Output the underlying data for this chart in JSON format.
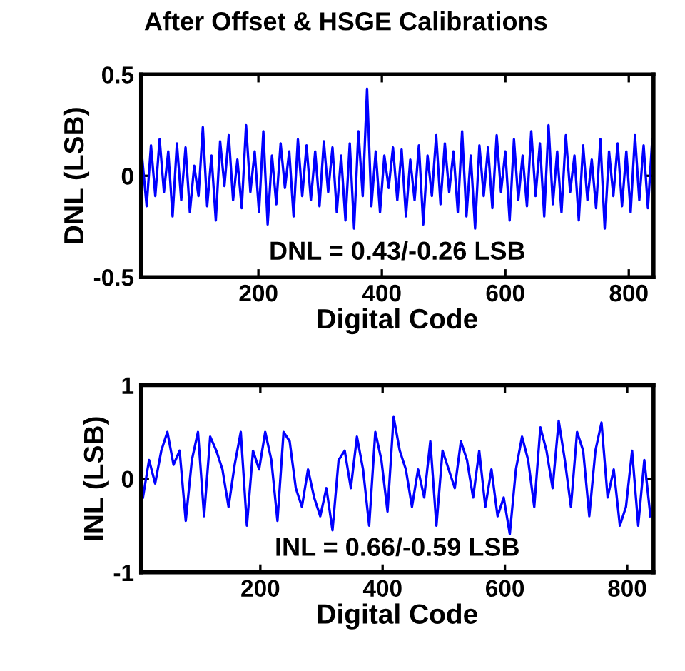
{
  "chart_data": [
    {
      "type": "line",
      "title": "After Offset & HSGE Calibrations",
      "xlabel": "Digital Code",
      "ylabel": "DNL (LSB)",
      "annotations": [
        "DNL = 0.43/-0.26 LSB"
      ],
      "xlim": [
        10,
        840
      ],
      "ylim": [
        -0.5,
        0.5
      ],
      "xticks": [
        200,
        400,
        600,
        800
      ],
      "yticks": [
        -0.5,
        0,
        0.5
      ],
      "grid": false,
      "marker": "none",
      "line_style": "solid",
      "series": [
        {
          "color": "#0000ff",
          "x": [
            12,
            19,
            26,
            33,
            40,
            47,
            54,
            61,
            68,
            75,
            82,
            89,
            96,
            103,
            110,
            117,
            124,
            131,
            138,
            145,
            152,
            159,
            166,
            173,
            180,
            187,
            194,
            201,
            208,
            215,
            222,
            229,
            236,
            243,
            250,
            257,
            264,
            271,
            278,
            285,
            292,
            299,
            306,
            313,
            320,
            327,
            334,
            341,
            348,
            355,
            362,
            369,
            376,
            383,
            390,
            397,
            404,
            411,
            418,
            425,
            432,
            439,
            446,
            453,
            460,
            467,
            474,
            481,
            488,
            495,
            502,
            509,
            516,
            523,
            530,
            537,
            544,
            551,
            558,
            565,
            572,
            579,
            586,
            593,
            600,
            607,
            614,
            621,
            628,
            635,
            642,
            649,
            656,
            663,
            670,
            677,
            684,
            691,
            698,
            705,
            712,
            719,
            726,
            733,
            740,
            747,
            754,
            761,
            768,
            775,
            782,
            789,
            796,
            803,
            810,
            817,
            824,
            831,
            838
          ],
          "values": [
            0.08,
            -0.15,
            0.15,
            -0.1,
            0.18,
            -0.08,
            0.12,
            -0.2,
            0.16,
            -0.12,
            0.14,
            -0.18,
            0.05,
            -0.1,
            0.24,
            -0.15,
            0.1,
            -0.22,
            0.17,
            -0.05,
            0.2,
            -0.12,
            0.08,
            -0.16,
            0.25,
            -0.08,
            0.12,
            -0.18,
            0.22,
            -0.24,
            0.1,
            -0.14,
            0.16,
            -0.06,
            0.12,
            -0.2,
            0.18,
            -0.1,
            0.15,
            -0.12,
            0.12,
            -0.15,
            0.17,
            -0.08,
            0.14,
            -0.18,
            0.1,
            -0.22,
            0.16,
            -0.26,
            0.22,
            -0.1,
            0.43,
            -0.15,
            0.12,
            -0.18,
            0.1,
            -0.06,
            0.14,
            -0.12,
            0.13,
            -0.2,
            0.08,
            -0.12,
            0.15,
            -0.24,
            0.1,
            -0.1,
            0.2,
            -0.14,
            0.16,
            -0.08,
            0.12,
            -0.18,
            0.22,
            -0.2,
            0.1,
            -0.26,
            0.15,
            -0.1,
            0.14,
            -0.16,
            0.2,
            -0.08,
            0.12,
            -0.22,
            0.18,
            -0.12,
            0.1,
            -0.15,
            0.22,
            -0.1,
            0.16,
            -0.2,
            0.25,
            -0.14,
            0.12,
            -0.18,
            0.2,
            -0.08,
            0.1,
            -0.22,
            0.15,
            -0.12,
            0.08,
            -0.16,
            0.18,
            -0.26,
            0.12,
            -0.1,
            0.16,
            -0.15,
            0.12,
            -0.18,
            0.2,
            -0.12,
            0.15,
            -0.16,
            0.18
          ]
        }
      ]
    },
    {
      "type": "line",
      "xlabel": "Digital Code",
      "ylabel": "INL (LSB)",
      "annotations": [
        "INL = 0.66/-0.59 LSB"
      ],
      "xlim": [
        5,
        843
      ],
      "ylim": [
        -1,
        1
      ],
      "xticks": [
        200,
        400,
        600,
        800
      ],
      "yticks": [
        -1,
        0,
        1
      ],
      "grid": false,
      "marker": "none",
      "line_style": "solid",
      "series": [
        {
          "color": "#0000ff",
          "x": [
            8,
            18,
            28,
            38,
            48,
            58,
            68,
            78,
            88,
            98,
            108,
            118,
            128,
            138,
            148,
            158,
            168,
            178,
            188,
            198,
            208,
            218,
            228,
            238,
            248,
            258,
            268,
            278,
            288,
            298,
            308,
            318,
            328,
            338,
            348,
            358,
            368,
            378,
            388,
            398,
            408,
            418,
            428,
            438,
            448,
            458,
            468,
            478,
            488,
            498,
            508,
            518,
            528,
            538,
            548,
            558,
            568,
            578,
            588,
            598,
            608,
            618,
            628,
            638,
            648,
            658,
            668,
            678,
            688,
            698,
            708,
            718,
            728,
            738,
            748,
            758,
            768,
            778,
            788,
            798,
            808,
            818,
            828,
            838
          ],
          "values": [
            -0.2,
            0.2,
            -0.05,
            0.3,
            0.5,
            0.15,
            0.3,
            -0.45,
            0.2,
            0.5,
            -0.4,
            0.45,
            0.3,
            0.1,
            -0.3,
            0.15,
            0.5,
            -0.5,
            0.3,
            0.1,
            0.5,
            0.2,
            -0.45,
            0.5,
            0.4,
            -0.1,
            -0.3,
            0.1,
            -0.2,
            -0.4,
            -0.1,
            -0.55,
            0.2,
            0.3,
            -0.1,
            0.45,
            0.1,
            -0.5,
            0.5,
            0.2,
            -0.35,
            0.66,
            0.3,
            0.1,
            -0.3,
            0.1,
            -0.2,
            0.4,
            -0.5,
            0.3,
            0.1,
            -0.1,
            0.4,
            0.2,
            -0.2,
            0.3,
            -0.3,
            0.1,
            -0.4,
            -0.2,
            -0.59,
            0.1,
            0.45,
            0.2,
            -0.3,
            0.55,
            0.3,
            -0.1,
            0.62,
            0.2,
            -0.3,
            0.5,
            0.3,
            -0.4,
            0.3,
            0.6,
            -0.2,
            0.1,
            -0.5,
            -0.3,
            0.3,
            -0.5,
            0.2,
            -0.4
          ]
        }
      ]
    }
  ]
}
